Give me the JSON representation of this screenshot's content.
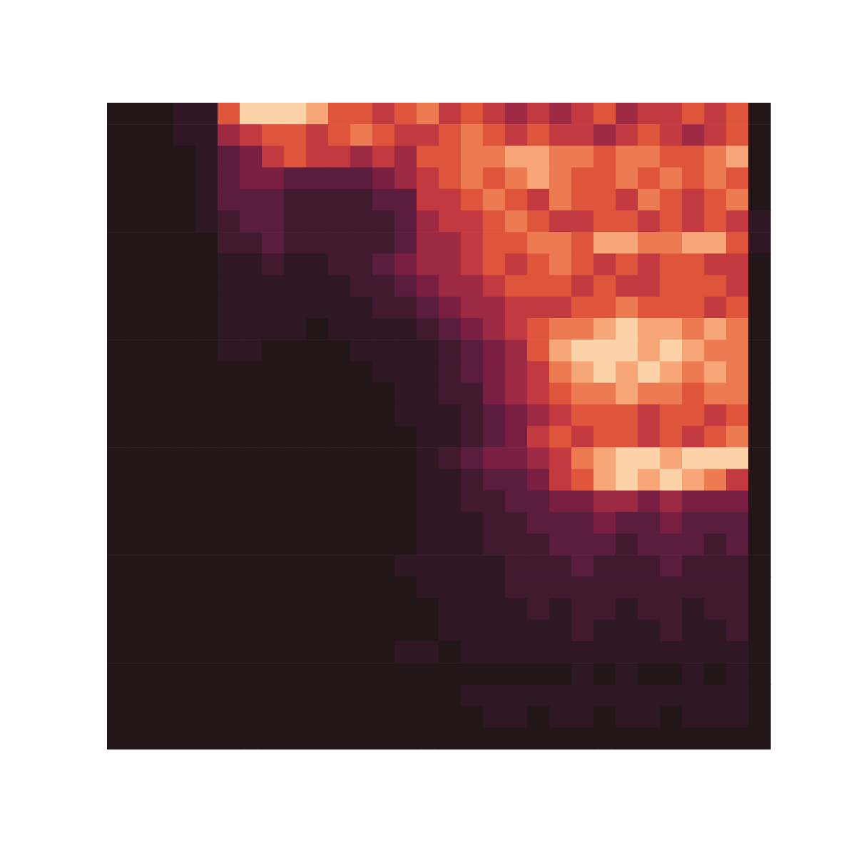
{
  "chart_data": {
    "type": "heatmap",
    "color_range": [
      0,
      10
    ],
    "cells": [
      [
        0,
        0,
        0,
        1,
        1,
        7,
        10,
        10,
        10,
        9,
        7,
        7,
        6,
        7,
        8,
        6,
        7,
        6,
        5,
        6,
        5,
        6,
        7,
        5,
        6,
        6,
        7,
        6,
        7,
        0
      ],
      [
        0,
        0,
        0,
        1,
        1,
        5,
        6,
        7,
        7,
        6,
        7,
        8,
        7,
        6,
        6,
        7,
        8,
        7,
        6,
        7,
        6,
        6,
        5,
        6,
        7,
        6,
        5,
        6,
        7,
        0
      ],
      [
        0,
        0,
        0,
        0,
        1,
        3,
        4,
        6,
        7,
        6,
        6,
        5,
        6,
        5,
        7,
        7,
        8,
        8,
        9,
        9,
        8,
        8,
        7,
        8,
        8,
        7,
        7,
        8,
        9,
        0
      ],
      [
        0,
        0,
        0,
        0,
        1,
        3,
        4,
        4,
        3,
        3,
        3,
        3,
        4,
        5,
        6,
        7,
        8,
        7,
        8,
        9,
        8,
        7,
        7,
        8,
        7,
        8,
        7,
        8,
        7,
        0
      ],
      [
        0,
        0,
        0,
        0,
        1,
        3,
        3,
        3,
        2,
        2,
        2,
        2,
        3,
        3,
        6,
        6,
        7,
        8,
        7,
        6,
        8,
        7,
        7,
        6,
        8,
        7,
        6,
        7,
        8,
        0
      ],
      [
        0,
        0,
        0,
        0,
        1,
        2,
        3,
        3,
        2,
        2,
        2,
        2,
        2,
        3,
        5,
        6,
        6,
        7,
        8,
        7,
        6,
        6,
        7,
        7,
        6,
        7,
        6,
        7,
        6,
        1
      ],
      [
        0,
        0,
        0,
        0,
        0,
        2,
        2,
        3,
        2,
        2,
        2,
        2,
        2,
        3,
        5,
        5,
        6,
        7,
        7,
        8,
        8,
        7,
        9,
        9,
        8,
        8,
        9,
        9,
        7,
        1
      ],
      [
        0,
        0,
        0,
        0,
        0,
        1,
        1,
        2,
        1,
        1,
        2,
        2,
        3,
        4,
        5,
        5,
        6,
        7,
        6,
        7,
        8,
        7,
        6,
        7,
        6,
        7,
        7,
        6,
        6,
        0
      ],
      [
        0,
        0,
        0,
        0,
        0,
        1,
        1,
        1,
        1,
        1,
        1,
        2,
        2,
        3,
        4,
        5,
        5,
        6,
        7,
        7,
        7,
        6,
        7,
        6,
        6,
        7,
        7,
        7,
        6,
        0
      ],
      [
        0,
        0,
        0,
        0,
        0,
        1,
        1,
        1,
        1,
        1,
        1,
        1,
        2,
        2,
        3,
        4,
        5,
        5,
        6,
        6,
        6,
        7,
        7,
        8,
        7,
        7,
        7,
        6,
        7,
        0
      ],
      [
        0,
        0,
        0,
        0,
        0,
        1,
        1,
        1,
        1,
        0,
        1,
        1,
        1,
        1,
        2,
        3,
        4,
        5,
        6,
        7,
        8,
        8,
        9,
        10,
        9,
        9,
        8,
        9,
        8,
        0
      ],
      [
        0,
        0,
        0,
        0,
        0,
        1,
        1,
        0,
        0,
        0,
        0,
        1,
        1,
        1,
        1,
        2,
        3,
        4,
        5,
        7,
        9,
        10,
        10,
        10,
        9,
        10,
        9,
        8,
        8,
        0
      ],
      [
        0,
        0,
        0,
        0,
        0,
        0,
        0,
        0,
        0,
        0,
        0,
        0,
        1,
        1,
        1,
        2,
        3,
        4,
        5,
        6,
        8,
        9,
        10,
        9,
        10,
        9,
        8,
        9,
        8,
        0
      ],
      [
        0,
        0,
        0,
        0,
        0,
        0,
        0,
        0,
        0,
        0,
        0,
        0,
        0,
        1,
        1,
        2,
        2,
        4,
        5,
        6,
        7,
        8,
        8,
        9,
        8,
        8,
        7,
        8,
        8,
        0
      ],
      [
        0,
        0,
        0,
        0,
        0,
        0,
        0,
        0,
        0,
        0,
        0,
        0,
        0,
        1,
        1,
        1,
        2,
        3,
        4,
        5,
        6,
        7,
        7,
        7,
        6,
        7,
        7,
        6,
        7,
        0
      ],
      [
        0,
        0,
        0,
        0,
        0,
        0,
        0,
        0,
        0,
        0,
        0,
        0,
        0,
        0,
        1,
        1,
        2,
        3,
        4,
        6,
        7,
        6,
        7,
        7,
        6,
        7,
        6,
        7,
        8,
        0
      ],
      [
        0,
        0,
        0,
        0,
        0,
        0,
        0,
        0,
        0,
        0,
        0,
        0,
        0,
        0,
        1,
        2,
        3,
        4,
        4,
        5,
        6,
        8,
        9,
        10,
        10,
        9,
        10,
        10,
        10,
        0
      ],
      [
        0,
        0,
        0,
        0,
        0,
        0,
        0,
        0,
        0,
        0,
        0,
        0,
        0,
        0,
        1,
        1,
        2,
        3,
        3,
        4,
        6,
        7,
        9,
        10,
        9,
        10,
        9,
        8,
        6,
        0
      ],
      [
        0,
        0,
        0,
        0,
        0,
        0,
        0,
        0,
        0,
        0,
        0,
        0,
        0,
        0,
        1,
        1,
        2,
        2,
        3,
        3,
        4,
        4,
        5,
        5,
        4,
        5,
        4,
        4,
        4,
        0
      ],
      [
        0,
        0,
        0,
        0,
        0,
        0,
        0,
        0,
        0,
        0,
        0,
        0,
        0,
        0,
        1,
        1,
        1,
        2,
        2,
        3,
        3,
        3,
        4,
        3,
        3,
        4,
        3,
        3,
        3,
        0
      ],
      [
        0,
        0,
        0,
        0,
        0,
        0,
        0,
        0,
        0,
        0,
        0,
        0,
        0,
        0,
        1,
        1,
        1,
        2,
        2,
        2,
        3,
        3,
        3,
        2,
        3,
        3,
        3,
        2,
        3,
        0
      ],
      [
        0,
        0,
        0,
        0,
        0,
        0,
        0,
        0,
        0,
        0,
        0,
        0,
        0,
        1,
        1,
        1,
        1,
        1,
        2,
        2,
        2,
        3,
        2,
        2,
        2,
        3,
        2,
        2,
        2,
        0
      ],
      [
        0,
        0,
        0,
        0,
        0,
        0,
        0,
        0,
        0,
        0,
        0,
        0,
        0,
        0,
        1,
        1,
        1,
        1,
        2,
        2,
        2,
        2,
        2,
        2,
        2,
        2,
        2,
        2,
        2,
        0
      ],
      [
        0,
        0,
        0,
        0,
        0,
        0,
        0,
        0,
        0,
        0,
        0,
        0,
        0,
        0,
        0,
        1,
        1,
        1,
        1,
        2,
        1,
        2,
        2,
        1,
        2,
        2,
        1,
        2,
        2,
        0
      ],
      [
        0,
        0,
        0,
        0,
        0,
        0,
        0,
        0,
        0,
        0,
        0,
        0,
        0,
        0,
        0,
        1,
        1,
        1,
        1,
        1,
        1,
        2,
        1,
        1,
        1,
        2,
        1,
        1,
        2,
        0
      ],
      [
        0,
        0,
        0,
        0,
        0,
        0,
        0,
        0,
        0,
        0,
        0,
        0,
        0,
        1,
        1,
        0,
        1,
        1,
        1,
        1,
        1,
        1,
        1,
        1,
        1,
        1,
        1,
        1,
        1,
        0
      ],
      [
        0,
        0,
        0,
        0,
        0,
        0,
        0,
        0,
        0,
        0,
        0,
        0,
        0,
        0,
        0,
        0,
        0,
        0,
        0,
        0,
        0,
        1,
        0,
        1,
        0,
        0,
        1,
        0,
        1,
        0
      ],
      [
        0,
        0,
        0,
        0,
        0,
        0,
        0,
        0,
        0,
        0,
        0,
        0,
        0,
        0,
        0,
        0,
        1,
        1,
        1,
        1,
        1,
        1,
        1,
        1,
        1,
        1,
        1,
        1,
        1,
        0
      ],
      [
        0,
        0,
        0,
        0,
        0,
        0,
        0,
        0,
        0,
        0,
        0,
        0,
        0,
        0,
        0,
        0,
        0,
        1,
        1,
        0,
        1,
        1,
        0,
        1,
        1,
        0,
        1,
        1,
        1,
        0
      ],
      [
        0,
        0,
        0,
        0,
        0,
        0,
        0,
        0,
        0,
        0,
        0,
        0,
        0,
        0,
        0,
        0,
        0,
        0,
        0,
        0,
        0,
        0,
        0,
        0,
        0,
        0,
        0,
        0,
        0,
        0
      ]
    ]
  }
}
